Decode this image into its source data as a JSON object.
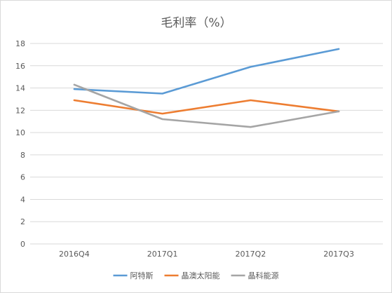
{
  "chart_data": {
    "type": "line",
    "title": "毛利率（%）",
    "categories": [
      "2016Q4",
      "2017Q1",
      "2017Q2",
      "2017Q3"
    ],
    "ylim": [
      0,
      18
    ],
    "yticks": [
      0,
      2,
      4,
      6,
      8,
      10,
      12,
      14,
      16,
      18
    ],
    "grid": true,
    "legend_position": "bottom",
    "series": [
      {
        "name": "阿特斯",
        "color": "#5b9bd5",
        "values": [
          13.9,
          13.5,
          15.9,
          17.5
        ]
      },
      {
        "name": "晶澳太阳能",
        "color": "#ed7d31",
        "values": [
          12.9,
          11.7,
          12.9,
          11.9
        ]
      },
      {
        "name": "晶科能源",
        "color": "#a5a5a5",
        "values": [
          14.3,
          11.2,
          10.5,
          11.9
        ]
      }
    ]
  }
}
